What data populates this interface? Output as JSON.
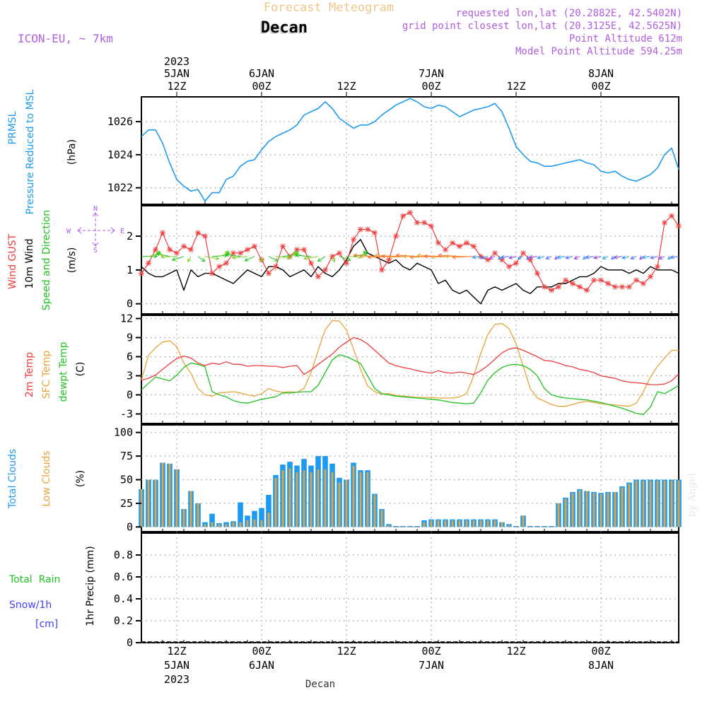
{
  "header": {
    "title": "Forecast Meteogram",
    "location": "Decan",
    "model": "ICON-EU, ~ 7km",
    "requested": "requested lon,lat (20.2882E, 42.5402N)",
    "grid_point": "grid point closest lon,lat (20.3125E, 42.5625N)",
    "point_altitude": "Point Altitude 612m",
    "model_altitude": "Model Point Altitude 594.25m",
    "footer_location": "Decan",
    "watermark": "by Angel"
  },
  "time_axis": {
    "top_labels": [
      {
        "l1": "2023",
        "l2": "5JAN",
        "l3": "12Z",
        "hour": 12
      },
      {
        "l1": "",
        "l2": "6JAN",
        "l3": "00Z",
        "hour": 24
      },
      {
        "l1": "",
        "l2": "",
        "l3": "12Z",
        "hour": 36
      },
      {
        "l1": "",
        "l2": "7JAN",
        "l3": "00Z",
        "hour": 48
      },
      {
        "l1": "",
        "l2": "",
        "l3": "12Z",
        "hour": 60
      },
      {
        "l1": "",
        "l2": "8JAN",
        "l3": "00Z",
        "hour": 72
      }
    ],
    "bottom_labels": [
      {
        "l1": "12Z",
        "l2": "5JAN",
        "l3": "2023",
        "hour": 12
      },
      {
        "l1": "00Z",
        "l2": "6JAN",
        "l3": "",
        "hour": 24
      },
      {
        "l1": "12Z",
        "l2": "",
        "l3": "",
        "hour": 36
      },
      {
        "l1": "00Z",
        "l2": "7JAN",
        "l3": "",
        "hour": 48
      },
      {
        "l1": "12Z",
        "l2": "",
        "l3": "",
        "hour": 60
      },
      {
        "l1": "00Z",
        "l2": "8JAN",
        "l3": "",
        "hour": 72
      }
    ],
    "start_hour": 7,
    "end_hour": 83
  },
  "panels": {
    "pressure": {
      "labels": [
        "PRMSL",
        "Pressure Reduced to MSL"
      ],
      "unit": "(hPa)"
    },
    "wind": {
      "labels": [
        "Wind GUST",
        "10m Wind",
        "Speed and Direction"
      ],
      "unit": "(m/s)",
      "compass": {
        "n": "N",
        "s": "S",
        "w": "W",
        "e": "E"
      }
    },
    "temp": {
      "labels": [
        "2m Temp",
        "SFC Temp",
        "dewpt Temp"
      ],
      "unit": "(C)"
    },
    "clouds": {
      "labels": [
        "Total Clouds",
        "Low Clouds"
      ],
      "unit": "(%)"
    },
    "precip": {
      "labels": [
        "Total  Rain",
        "Snow/1h",
        "[cm]"
      ],
      "unit": "1hr Precip (mm)"
    }
  },
  "colors": {
    "pressure": "#1e9bef",
    "gust": "#f03c3c",
    "wind": "#000000",
    "temp2m": "#f03c3c",
    "sfc": "#e5a53a",
    "dew": "#21c221",
    "total_clouds": "#1e9bef",
    "low_clouds": "#e5a53a",
    "rain": "#21c221",
    "snow": "#4040ff",
    "purple": "#b15ee0",
    "title": "#f0c78a"
  },
  "chart_data": [
    {
      "type": "line",
      "name": "PRMSL",
      "ylim": [
        1021,
        1027.5
      ],
      "yticks": [
        1022,
        1024,
        1026
      ],
      "x": [
        7,
        8,
        9,
        10,
        11,
        12,
        13,
        14,
        15,
        16,
        17,
        18,
        19,
        20,
        21,
        22,
        23,
        24,
        25,
        26,
        27,
        28,
        29,
        30,
        31,
        32,
        33,
        34,
        35,
        36,
        37,
        38,
        39,
        40,
        41,
        42,
        43,
        44,
        45,
        46,
        47,
        48,
        49,
        50,
        51,
        52,
        53,
        54,
        55,
        56,
        57,
        58,
        59,
        60,
        61,
        62,
        63,
        64,
        65,
        66,
        67,
        68,
        69,
        70,
        71,
        72,
        73,
        74,
        75,
        76,
        77,
        78,
        79,
        80,
        81,
        82,
        83
      ],
      "values": [
        1025.1,
        1025.5,
        1025.5,
        1024.7,
        1023.5,
        1022.5,
        1022.1,
        1021.8,
        1021.9,
        1021.2,
        1021.7,
        1021.7,
        1022.5,
        1022.7,
        1023.3,
        1023.6,
        1023.7,
        1024.3,
        1024.8,
        1025.1,
        1025.3,
        1025.5,
        1025.8,
        1026.4,
        1026.6,
        1026.8,
        1027.2,
        1026.8,
        1026.2,
        1025.9,
        1025.6,
        1025.8,
        1025.8,
        1026.0,
        1026.4,
        1026.7,
        1027.0,
        1027.2,
        1027.4,
        1027.2,
        1026.9,
        1026.8,
        1027.0,
        1026.9,
        1026.6,
        1026.3,
        1026.5,
        1026.7,
        1026.8,
        1026.9,
        1027.1,
        1026.6,
        1025.6,
        1024.5,
        1024.0,
        1023.6,
        1023.5,
        1023.3,
        1023.3,
        1023.4,
        1023.5,
        1023.6,
        1023.7,
        1023.5,
        1023.4,
        1023.0,
        1022.9,
        1023.0,
        1022.7,
        1022.5,
        1022.4,
        1022.6,
        1022.8,
        1023.2,
        1024.0,
        1024.4,
        1023.1
      ]
    },
    {
      "type": "line",
      "name": "Wind",
      "ylim": [
        -0.3,
        2.9
      ],
      "yticks": [
        0,
        1,
        2
      ],
      "x": [
        7,
        8,
        9,
        10,
        11,
        12,
        13,
        14,
        15,
        16,
        17,
        18,
        19,
        20,
        21,
        22,
        23,
        24,
        25,
        26,
        27,
        28,
        29,
        30,
        31,
        32,
        33,
        34,
        35,
        36,
        37,
        38,
        39,
        40,
        41,
        42,
        43,
        44,
        45,
        46,
        47,
        48,
        49,
        50,
        51,
        52,
        53,
        54,
        55,
        56,
        57,
        58,
        59,
        60,
        61,
        62,
        63,
        64,
        65,
        66,
        67,
        68,
        69,
        70,
        71,
        72,
        73,
        74,
        75,
        76,
        77,
        78,
        79,
        80,
        81,
        82,
        83
      ],
      "gust": [
        0.9,
        1.2,
        1.6,
        2.1,
        1.6,
        1.5,
        1.7,
        1.6,
        2.1,
        2.0,
        0.9,
        1.1,
        1.2,
        1.5,
        1.5,
        1.6,
        1.7,
        1.3,
        0.9,
        1.1,
        1.7,
        1.4,
        1.6,
        1.6,
        1.2,
        0.8,
        1.0,
        1.4,
        1.5,
        1.2,
        1.9,
        2.2,
        2.2,
        2.1,
        1.0,
        1.3,
        2.0,
        2.6,
        2.7,
        2.4,
        2.4,
        2.3,
        1.8,
        1.6,
        1.8,
        1.7,
        1.8,
        1.7,
        1.4,
        1.3,
        1.5,
        1.3,
        1.1,
        1.2,
        1.5,
        1.3,
        0.9,
        0.5,
        0.4,
        0.5,
        0.7,
        0.6,
        0.5,
        0.4,
        0.7,
        0.7,
        0.6,
        0.5,
        0.5,
        0.5,
        0.7,
        0.6,
        0.8,
        1.1,
        2.4,
        2.6,
        2.3
      ],
      "speed": [
        1.1,
        0.9,
        0.8,
        0.8,
        0.9,
        1.0,
        0.4,
        1.0,
        0.8,
        0.9,
        0.9,
        0.8,
        0.7,
        0.6,
        0.8,
        1.0,
        0.9,
        0.8,
        1.1,
        1.1,
        1.0,
        0.8,
        0.9,
        1.0,
        0.8,
        1.1,
        0.9,
        0.8,
        1.0,
        1.3,
        1.7,
        1.9,
        1.5,
        1.4,
        1.3,
        1.2,
        1.3,
        1.1,
        1.0,
        1.2,
        1.1,
        1.0,
        0.6,
        0.7,
        0.4,
        0.3,
        0.4,
        0.2,
        0.0,
        0.4,
        0.5,
        0.4,
        0.5,
        0.6,
        0.4,
        0.3,
        0.5,
        0.5,
        0.5,
        0.6,
        0.6,
        0.7,
        0.8,
        0.8,
        0.9,
        1.1,
        1.0,
        1.0,
        1.0,
        0.9,
        1.0,
        0.9,
        1.1,
        1.0,
        1.0,
        1.0,
        0.9
      ]
    },
    {
      "type": "line",
      "name": "Temperature",
      "ylim": [
        -4.5,
        12.5
      ],
      "yticks": [
        -3,
        0,
        3,
        6,
        9,
        12
      ],
      "x": [
        7,
        8,
        9,
        10,
        11,
        12,
        13,
        14,
        15,
        16,
        17,
        18,
        19,
        20,
        21,
        22,
        23,
        24,
        25,
        26,
        27,
        28,
        29,
        30,
        31,
        32,
        33,
        34,
        35,
        36,
        37,
        38,
        39,
        40,
        41,
        42,
        43,
        44,
        45,
        46,
        47,
        48,
        49,
        50,
        51,
        52,
        53,
        54,
        55,
        56,
        57,
        58,
        59,
        60,
        61,
        62,
        63,
        64,
        65,
        66,
        67,
        68,
        69,
        70,
        71,
        72,
        73,
        74,
        75,
        76,
        77,
        78,
        79,
        80,
        81,
        82,
        83
      ],
      "t2m": [
        2.3,
        2.6,
        3.1,
        4.0,
        4.9,
        5.7,
        6.1,
        5.8,
        5.0,
        4.6,
        5.0,
        4.8,
        5.2,
        4.8,
        4.8,
        4.5,
        4.6,
        4.6,
        4.5,
        4.5,
        4.3,
        4.5,
        4.6,
        3.2,
        3.9,
        4.8,
        5.6,
        6.4,
        7.5,
        8.3,
        9.0,
        8.7,
        8.0,
        7.0,
        6.0,
        5.0,
        4.6,
        4.3,
        4.1,
        3.8,
        3.6,
        3.4,
        3.8,
        3.5,
        3.4,
        3.6,
        3.4,
        3.2,
        3.8,
        4.6,
        5.6,
        6.6,
        7.2,
        7.4,
        7.0,
        6.5,
        6.0,
        5.4,
        5.3,
        5.0,
        4.6,
        4.4,
        4.0,
        3.8,
        3.5,
        3.0,
        2.8,
        2.6,
        2.2,
        2.0,
        1.9,
        1.8,
        1.6,
        1.6,
        1.7,
        2.2,
        3.3
      ],
      "sfc": [
        2.3,
        6.2,
        7.4,
        8.3,
        8.5,
        7.6,
        5.0,
        3.4,
        1.0,
        0.0,
        -0.2,
        0.3,
        0.4,
        0.5,
        0.3,
        0.0,
        -0.2,
        0.2,
        1.0,
        0.6,
        0.4,
        0.5,
        0.4,
        1.0,
        3.5,
        7.0,
        10.2,
        11.7,
        11.6,
        10.2,
        7.2,
        4.0,
        1.4,
        0.5,
        0.1,
        0.2,
        -0.1,
        -0.2,
        -0.3,
        -0.4,
        -0.4,
        -0.4,
        -0.5,
        -0.5,
        -0.5,
        -0.3,
        0.2,
        3.0,
        6.5,
        9.5,
        11.1,
        11.2,
        10.4,
        8.0,
        4.5,
        1.0,
        -0.5,
        -1.0,
        -1.5,
        -1.8,
        -1.8,
        -1.5,
        -1.2,
        -1.0,
        -1.2,
        -1.4,
        -1.5,
        -1.6,
        -1.7,
        -1.8,
        -1.3,
        0.5,
        2.8,
        4.5,
        5.8,
        7.0,
        7.0
      ],
      "dew": [
        0.8,
        1.8,
        2.8,
        2.5,
        2.2,
        3.1,
        4.3,
        5.0,
        4.8,
        4.4,
        0.5,
        0.0,
        -0.3,
        -0.9,
        -1.2,
        -1.3,
        -1.0,
        -0.7,
        -0.5,
        -0.3,
        0.3,
        0.3,
        0.4,
        0.5,
        0.5,
        1.5,
        3.5,
        5.5,
        6.3,
        6.0,
        5.5,
        4.9,
        3.0,
        1.0,
        0.2,
        0.0,
        -0.2,
        -0.3,
        -0.4,
        -0.5,
        -0.6,
        -0.7,
        -0.8,
        -1.0,
        -1.2,
        -1.3,
        -1.4,
        -1.3,
        0.3,
        2.3,
        3.5,
        4.3,
        4.7,
        4.8,
        4.6,
        4.0,
        3.0,
        1.0,
        0.0,
        -0.3,
        -0.5,
        -0.6,
        -0.7,
        -0.8,
        -1.0,
        -1.2,
        -1.5,
        -1.8,
        -2.1,
        -2.5,
        -2.9,
        -3.1,
        -1.9,
        0.5,
        0.2,
        0.8,
        1.5
      ]
    },
    {
      "type": "bar",
      "name": "Clouds",
      "ylim": [
        -5,
        108
      ],
      "yticks": [
        0,
        25,
        50,
        75,
        100
      ],
      "x": [
        7,
        8,
        9,
        10,
        11,
        12,
        13,
        14,
        15,
        16,
        17,
        18,
        19,
        20,
        21,
        22,
        23,
        24,
        25,
        26,
        27,
        28,
        29,
        30,
        31,
        32,
        33,
        34,
        35,
        36,
        37,
        38,
        39,
        40,
        41,
        42,
        43,
        44,
        45,
        46,
        47,
        48,
        49,
        50,
        51,
        52,
        53,
        54,
        55,
        56,
        57,
        58,
        59,
        60,
        61,
        62,
        63,
        64,
        65,
        66,
        67,
        68,
        69,
        70,
        71,
        72,
        73,
        74,
        75,
        76,
        77,
        78,
        79,
        80,
        81,
        82,
        83
      ],
      "total": [
        40,
        50,
        50,
        68,
        67,
        61,
        19,
        38,
        25,
        5,
        14,
        4,
        5,
        6,
        26,
        12,
        17,
        20,
        34,
        55,
        66,
        69,
        65,
        72,
        65,
        75,
        75,
        67,
        52,
        50,
        68,
        60,
        60,
        35,
        19,
        3,
        1,
        1,
        1,
        1,
        7,
        8,
        8,
        8,
        8,
        8,
        8,
        8,
        8,
        8,
        8,
        5,
        3,
        1,
        12,
        1,
        1,
        1,
        1,
        25,
        31,
        37,
        40,
        38,
        37,
        36,
        37,
        37,
        43,
        47,
        50,
        50,
        50,
        50,
        50,
        50,
        50
      ],
      "low": [
        40,
        50,
        50,
        68,
        67,
        61,
        19,
        38,
        25,
        3,
        5,
        3,
        3,
        5,
        5,
        7,
        8,
        7,
        15,
        52,
        60,
        62,
        58,
        60,
        58,
        61,
        61,
        58,
        47,
        50,
        65,
        58,
        58,
        34,
        18,
        2,
        0,
        0,
        0,
        0,
        5,
        7,
        7,
        7,
        7,
        7,
        7,
        7,
        7,
        7,
        7,
        5,
        2,
        0,
        12,
        0,
        0,
        0,
        0,
        25,
        30,
        36,
        39,
        38,
        36,
        35,
        36,
        37,
        42,
        46,
        49,
        49,
        49,
        49,
        49,
        49,
        49
      ]
    },
    {
      "type": "bar",
      "name": "Precipitation",
      "ylim": [
        0,
        1.0
      ],
      "yticks": [
        0,
        0.2,
        0.4,
        0.6,
        0.8
      ],
      "x": [
        7,
        83
      ],
      "values": [
        0,
        0
      ]
    }
  ]
}
